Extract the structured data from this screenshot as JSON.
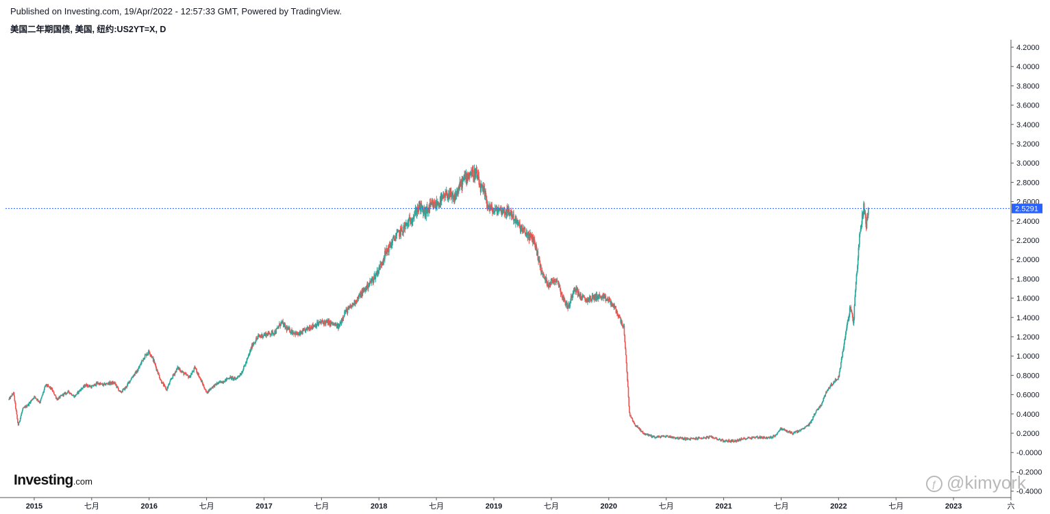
{
  "header": {
    "published": "Published on Investing.com, 19/Apr/2022 - 12:57:33 GMT, Powered by TradingView.",
    "instrument": "美国二年期国债, 美国, 纽约:US2YT=X, D"
  },
  "branding": {
    "logo_main": "Investing",
    "logo_suffix": ".com",
    "watermark": "@kimyork"
  },
  "colors": {
    "up": "#26a69a",
    "down": "#ef5350",
    "price_line": "#2962ff",
    "price_label_bg": "#2962ff",
    "axis": "#555555"
  },
  "chart_data": {
    "type": "candlestick",
    "title": "美国二年期国债, 美国, 纽约:US2YT=X, D",
    "interval": "D",
    "current_value": 2.5291,
    "current_value_label": "2.5291",
    "xlabels": [
      "2015",
      "七月",
      "2016",
      "七月",
      "2017",
      "七月",
      "2018",
      "七月",
      "2019",
      "七月",
      "2020",
      "七月",
      "2021",
      "七月",
      "2022",
      "七月",
      "2023",
      "六"
    ],
    "ylabels": [
      "4.2000",
      "4.0000",
      "3.8000",
      "3.6000",
      "3.4000",
      "3.2000",
      "3.0000",
      "2.8000",
      "2.6000",
      "2.4000",
      "2.2000",
      "2.0000",
      "1.8000",
      "1.6000",
      "1.4000",
      "1.2000",
      "1.0000",
      "0.8000",
      "0.6000",
      "0.4000",
      "0.2000",
      "-0.0000",
      "-0.2000",
      "-0.4000"
    ],
    "ylim": [
      -0.45,
      4.25
    ],
    "xlim": [
      2014.75,
      2023.5
    ],
    "series_path": [
      [
        2014.78,
        0.55
      ],
      [
        2014.82,
        0.62
      ],
      [
        2014.86,
        0.28
      ],
      [
        2014.9,
        0.45
      ],
      [
        2014.95,
        0.5
      ],
      [
        2015.0,
        0.58
      ],
      [
        2015.05,
        0.52
      ],
      [
        2015.1,
        0.7
      ],
      [
        2015.15,
        0.66
      ],
      [
        2015.2,
        0.55
      ],
      [
        2015.25,
        0.6
      ],
      [
        2015.3,
        0.63
      ],
      [
        2015.35,
        0.58
      ],
      [
        2015.4,
        0.65
      ],
      [
        2015.45,
        0.7
      ],
      [
        2015.5,
        0.68
      ],
      [
        2015.55,
        0.72
      ],
      [
        2015.6,
        0.7
      ],
      [
        2015.65,
        0.72
      ],
      [
        2015.7,
        0.72
      ],
      [
        2015.75,
        0.62
      ],
      [
        2015.8,
        0.68
      ],
      [
        2015.85,
        0.78
      ],
      [
        2015.9,
        0.85
      ],
      [
        2015.95,
        0.98
      ],
      [
        2016.0,
        1.05
      ],
      [
        2016.03,
        0.98
      ],
      [
        2016.07,
        0.85
      ],
      [
        2016.1,
        0.75
      ],
      [
        2016.15,
        0.65
      ],
      [
        2016.2,
        0.78
      ],
      [
        2016.25,
        0.88
      ],
      [
        2016.3,
        0.82
      ],
      [
        2016.35,
        0.78
      ],
      [
        2016.4,
        0.88
      ],
      [
        2016.45,
        0.75
      ],
      [
        2016.5,
        0.62
      ],
      [
        2016.55,
        0.68
      ],
      [
        2016.6,
        0.72
      ],
      [
        2016.65,
        0.74
      ],
      [
        2016.7,
        0.78
      ],
      [
        2016.75,
        0.76
      ],
      [
        2016.8,
        0.82
      ],
      [
        2016.85,
        0.95
      ],
      [
        2016.9,
        1.12
      ],
      [
        2016.95,
        1.2
      ],
      [
        2017.0,
        1.22
      ],
      [
        2017.1,
        1.25
      ],
      [
        2017.15,
        1.35
      ],
      [
        2017.2,
        1.28
      ],
      [
        2017.3,
        1.22
      ],
      [
        2017.4,
        1.3
      ],
      [
        2017.5,
        1.35
      ],
      [
        2017.55,
        1.35
      ],
      [
        2017.6,
        1.33
      ],
      [
        2017.65,
        1.3
      ],
      [
        2017.7,
        1.45
      ],
      [
        2017.75,
        1.5
      ],
      [
        2017.85,
        1.65
      ],
      [
        2017.95,
        1.8
      ],
      [
        2018.0,
        1.9
      ],
      [
        2018.05,
        2.05
      ],
      [
        2018.1,
        2.15
      ],
      [
        2018.15,
        2.25
      ],
      [
        2018.2,
        2.3
      ],
      [
        2018.3,
        2.45
      ],
      [
        2018.35,
        2.55
      ],
      [
        2018.4,
        2.48
      ],
      [
        2018.45,
        2.55
      ],
      [
        2018.5,
        2.57
      ],
      [
        2018.55,
        2.62
      ],
      [
        2018.6,
        2.68
      ],
      [
        2018.65,
        2.62
      ],
      [
        2018.7,
        2.75
      ],
      [
        2018.75,
        2.85
      ],
      [
        2018.8,
        2.9
      ],
      [
        2018.85,
        2.88
      ],
      [
        2018.88,
        2.75
      ],
      [
        2018.92,
        2.68
      ],
      [
        2018.95,
        2.55
      ],
      [
        2019.0,
        2.5
      ],
      [
        2019.05,
        2.52
      ],
      [
        2019.1,
        2.5
      ],
      [
        2019.15,
        2.48
      ],
      [
        2019.2,
        2.38
      ],
      [
        2019.25,
        2.3
      ],
      [
        2019.3,
        2.25
      ],
      [
        2019.35,
        2.2
      ],
      [
        2019.42,
        1.85
      ],
      [
        2019.47,
        1.75
      ],
      [
        2019.55,
        1.8
      ],
      [
        2019.6,
        1.6
      ],
      [
        2019.65,
        1.5
      ],
      [
        2019.7,
        1.72
      ],
      [
        2019.75,
        1.62
      ],
      [
        2019.8,
        1.58
      ],
      [
        2019.85,
        1.6
      ],
      [
        2019.9,
        1.62
      ],
      [
        2019.95,
        1.6
      ],
      [
        2020.0,
        1.58
      ],
      [
        2020.05,
        1.5
      ],
      [
        2020.1,
        1.38
      ],
      [
        2020.13,
        1.3
      ],
      [
        2020.16,
        0.8
      ],
      [
        2020.18,
        0.4
      ],
      [
        2020.22,
        0.3
      ],
      [
        2020.3,
        0.2
      ],
      [
        2020.4,
        0.16
      ],
      [
        2020.5,
        0.17
      ],
      [
        2020.6,
        0.15
      ],
      [
        2020.7,
        0.14
      ],
      [
        2020.8,
        0.15
      ],
      [
        2020.9,
        0.16
      ],
      [
        2021.0,
        0.12
      ],
      [
        2021.1,
        0.12
      ],
      [
        2021.2,
        0.15
      ],
      [
        2021.3,
        0.16
      ],
      [
        2021.4,
        0.15
      ],
      [
        2021.45,
        0.18
      ],
      [
        2021.5,
        0.25
      ],
      [
        2021.55,
        0.22
      ],
      [
        2021.6,
        0.2
      ],
      [
        2021.65,
        0.22
      ],
      [
        2021.7,
        0.25
      ],
      [
        2021.75,
        0.3
      ],
      [
        2021.8,
        0.42
      ],
      [
        2021.85,
        0.5
      ],
      [
        2021.9,
        0.65
      ],
      [
        2021.95,
        0.72
      ],
      [
        2022.0,
        0.78
      ],
      [
        2022.05,
        1.15
      ],
      [
        2022.1,
        1.5
      ],
      [
        2022.13,
        1.35
      ],
      [
        2022.15,
        1.75
      ],
      [
        2022.18,
        2.2
      ],
      [
        2022.2,
        2.4
      ],
      [
        2022.22,
        2.58
      ],
      [
        2022.24,
        2.35
      ],
      [
        2022.26,
        2.53
      ]
    ]
  }
}
